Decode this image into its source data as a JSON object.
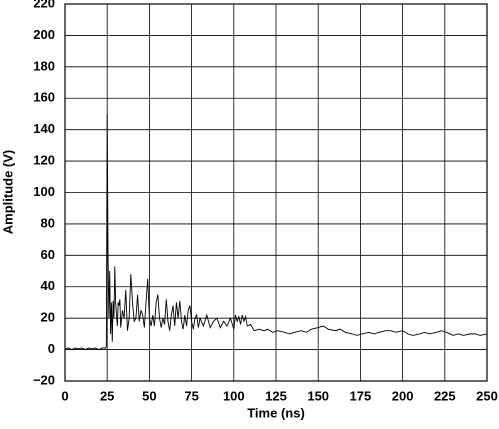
{
  "chart_data": {
    "type": "line",
    "x_label": "Time (ns)",
    "y_label": "Amplitude (V)",
    "xlim": [
      0,
      250
    ],
    "ylim": [
      -20,
      220
    ],
    "xticks": [
      0,
      25,
      50,
      75,
      100,
      125,
      150,
      175,
      200,
      225,
      250
    ],
    "yticks": [
      {
        "value": -20,
        "label": "−20"
      },
      0,
      20,
      40,
      60,
      80,
      100,
      120,
      140,
      160,
      180,
      200,
      220
    ],
    "grid": true,
    "series": [
      {
        "color": "#000000",
        "x": [
          0,
          2,
          4,
          6,
          8,
          10,
          12,
          14,
          16,
          18,
          20,
          22,
          24,
          24.5,
          25,
          25.5,
          26,
          26.5,
          27,
          27.5,
          28,
          28.5,
          29,
          29.5,
          30,
          31,
          31.5,
          32,
          32.5,
          33,
          34,
          35,
          36,
          37,
          38,
          39,
          40,
          41,
          42,
          43,
          44,
          45,
          46,
          47,
          48,
          49,
          50,
          51,
          52,
          53,
          54,
          55,
          56,
          57,
          58,
          59,
          60,
          61,
          62,
          63,
          64,
          65,
          66,
          67,
          68,
          69,
          70,
          71,
          72,
          73,
          74,
          75,
          76,
          77,
          78,
          79,
          80,
          82,
          84,
          86,
          88,
          90,
          92,
          94,
          96,
          98,
          100,
          101,
          102,
          103,
          104,
          105,
          106,
          107,
          108,
          110,
          112,
          115,
          118,
          120,
          123,
          126,
          130,
          133,
          136,
          140,
          143,
          146,
          150,
          153,
          156,
          160,
          163,
          166,
          170,
          173,
          176,
          180,
          183,
          186,
          190,
          193,
          196,
          200,
          203,
          206,
          210,
          213,
          216,
          220,
          223,
          226,
          230,
          233,
          236,
          240,
          243,
          246,
          250
        ],
        "values": [
          0.5,
          1,
          0,
          1,
          0.5,
          1,
          0,
          1,
          0.5,
          1,
          0,
          1,
          1,
          2,
          150,
          60,
          20,
          50,
          10,
          30,
          5,
          31,
          20,
          53,
          30,
          15,
          30,
          28,
          32,
          14,
          25,
          20,
          38,
          12,
          20,
          48,
          30,
          18,
          20,
          35,
          18,
          25,
          22,
          14,
          30,
          45,
          20,
          15,
          22,
          15,
          30,
          35,
          20,
          14,
          20,
          16,
          32,
          18,
          12,
          22,
          28,
          15,
          30,
          20,
          31,
          18,
          13,
          22,
          15,
          25,
          28,
          18,
          13,
          20,
          22,
          14,
          20,
          15,
          22,
          14,
          18,
          20,
          14,
          18,
          15,
          20,
          13,
          22,
          18,
          21,
          16,
          22,
          18,
          21,
          15,
          16,
          12,
          13,
          12,
          13,
          11,
          12,
          11,
          10,
          11,
          12,
          11,
          13,
          14,
          15,
          13,
          12,
          13,
          11,
          10,
          9,
          10,
          11,
          10,
          11,
          12,
          12,
          11,
          12,
          10,
          9,
          10,
          11,
          10,
          11,
          12,
          11,
          9,
          10,
          9,
          10,
          10,
          9,
          10
        ]
      }
    ]
  }
}
